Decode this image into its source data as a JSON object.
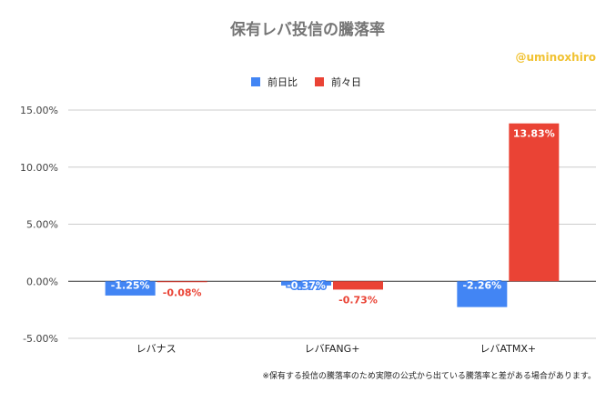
{
  "chart_data": {
    "type": "bar",
    "title": "保有レバ投信の騰落率",
    "watermark": "@uminoxhiro",
    "note": "※保有する投信の騰落率のため実際の公式から出ている騰落率と差がある場合があります。",
    "categories": [
      "レバナス",
      "レバFANG+",
      "レバATMX+"
    ],
    "series": [
      {
        "name": "前日比",
        "color": "#4285f4",
        "values": [
          -1.25,
          -0.37,
          -2.26
        ],
        "labels": [
          "-1.25%",
          "-0.37%",
          "-2.26%"
        ]
      },
      {
        "name": "前々日",
        "color": "#ea4335",
        "values": [
          -0.08,
          -0.73,
          13.83
        ],
        "labels": [
          "-0.08%",
          "-0.73%",
          "13.83%"
        ]
      }
    ],
    "yticks": [
      15,
      10,
      5,
      0,
      -5
    ],
    "ytick_labels": [
      "15.00%",
      "10.00%",
      "5.00%",
      "0.00%",
      "-5.00%"
    ],
    "ylim": [
      -5,
      15
    ],
    "legend": "top",
    "grid": true
  }
}
